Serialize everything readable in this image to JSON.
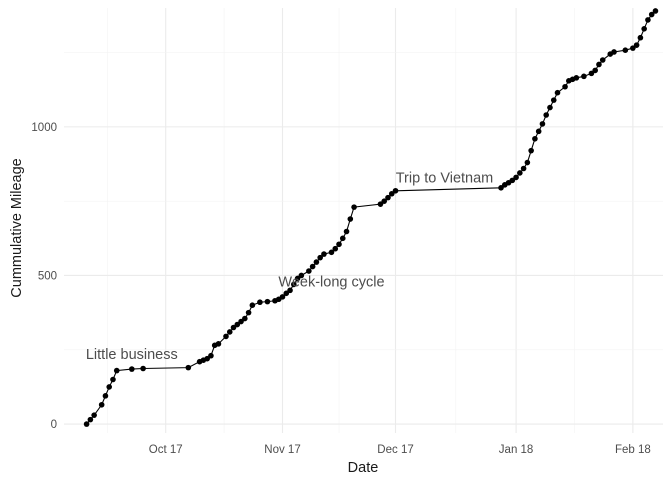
{
  "chart_data": {
    "type": "line",
    "xlabel": "Date",
    "ylabel": "Cummulative Mileage",
    "x_ticks": [
      {
        "date": "2017-10-17",
        "label": "Oct 17"
      },
      {
        "date": "2017-11-17",
        "label": "Nov 17"
      },
      {
        "date": "2017-12-17",
        "label": "Dec 17"
      },
      {
        "date": "2018-01-18",
        "label": "Jan 18"
      },
      {
        "date": "2018-02-18",
        "label": "Feb 18"
      }
    ],
    "x_range": [
      "2017-09-20",
      "2018-02-26"
    ],
    "y_ticks": [
      0,
      500,
      1000
    ],
    "y_range": [
      -30,
      1400
    ],
    "grid": true,
    "colors": {
      "line": "#000000",
      "point": "#000000",
      "grid": "#ebebeb"
    },
    "series": [
      {
        "points": [
          [
            "2017-09-26",
            0
          ],
          [
            "2017-09-27",
            15
          ],
          [
            "2017-09-28",
            30
          ],
          [
            "2017-09-30",
            65
          ],
          [
            "2017-10-01",
            95
          ],
          [
            "2017-10-02",
            125
          ],
          [
            "2017-10-03",
            150
          ],
          [
            "2017-10-04",
            180
          ],
          [
            "2017-10-08",
            185
          ],
          [
            "2017-10-11",
            187
          ],
          [
            "2017-10-23",
            190
          ],
          [
            "2017-10-26",
            210
          ],
          [
            "2017-10-27",
            215
          ],
          [
            "2017-10-28",
            220
          ],
          [
            "2017-10-29",
            230
          ],
          [
            "2017-10-30",
            265
          ],
          [
            "2017-10-31",
            270
          ],
          [
            "2017-11-02",
            295
          ],
          [
            "2017-11-03",
            310
          ],
          [
            "2017-11-04",
            325
          ],
          [
            "2017-11-05",
            335
          ],
          [
            "2017-11-06",
            345
          ],
          [
            "2017-11-07",
            355
          ],
          [
            "2017-11-08",
            375
          ],
          [
            "2017-11-09",
            400
          ],
          [
            "2017-11-11",
            410
          ],
          [
            "2017-11-13",
            412
          ],
          [
            "2017-11-15",
            415
          ],
          [
            "2017-11-16",
            420
          ],
          [
            "2017-11-17",
            428
          ],
          [
            "2017-11-18",
            440
          ],
          [
            "2017-11-19",
            450
          ],
          [
            "2017-11-20",
            470
          ],
          [
            "2017-11-21",
            490
          ],
          [
            "2017-11-22",
            500
          ],
          [
            "2017-11-24",
            515
          ],
          [
            "2017-11-25",
            530
          ],
          [
            "2017-11-26",
            545
          ],
          [
            "2017-11-27",
            560
          ],
          [
            "2017-11-28",
            572
          ],
          [
            "2017-11-30",
            578
          ],
          [
            "2017-12-01",
            590
          ],
          [
            "2017-12-02",
            605
          ],
          [
            "2017-12-03",
            625
          ],
          [
            "2017-12-04",
            648
          ],
          [
            "2017-12-05",
            690
          ],
          [
            "2017-12-06",
            730
          ],
          [
            "2017-12-13",
            740
          ],
          [
            "2017-12-14",
            750
          ],
          [
            "2017-12-15",
            762
          ],
          [
            "2017-12-16",
            775
          ],
          [
            "2017-12-17",
            785
          ],
          [
            "2018-01-14",
            795
          ],
          [
            "2018-01-15",
            805
          ],
          [
            "2018-01-16",
            812
          ],
          [
            "2018-01-17",
            820
          ],
          [
            "2018-01-18",
            830
          ],
          [
            "2018-01-19",
            845
          ],
          [
            "2018-01-20",
            860
          ],
          [
            "2018-01-21",
            880
          ],
          [
            "2018-01-22",
            920
          ],
          [
            "2018-01-23",
            960
          ],
          [
            "2018-01-24",
            985
          ],
          [
            "2018-01-25",
            1010
          ],
          [
            "2018-01-26",
            1040
          ],
          [
            "2018-01-27",
            1065
          ],
          [
            "2018-01-28",
            1090
          ],
          [
            "2018-01-29",
            1115
          ],
          [
            "2018-01-31",
            1135
          ],
          [
            "2018-02-01",
            1155
          ],
          [
            "2018-02-02",
            1160
          ],
          [
            "2018-02-03",
            1165
          ],
          [
            "2018-02-05",
            1170
          ],
          [
            "2018-02-07",
            1180
          ],
          [
            "2018-02-08",
            1190
          ],
          [
            "2018-02-09",
            1210
          ],
          [
            "2018-02-10",
            1225
          ],
          [
            "2018-02-12",
            1245
          ],
          [
            "2018-02-13",
            1252
          ],
          [
            "2018-02-16",
            1258
          ],
          [
            "2018-02-18",
            1265
          ],
          [
            "2018-02-19",
            1275
          ],
          [
            "2018-02-20",
            1300
          ],
          [
            "2018-02-21",
            1330
          ],
          [
            "2018-02-22",
            1360
          ],
          [
            "2018-02-23",
            1378
          ],
          [
            "2018-02-24",
            1390
          ]
        ]
      }
    ],
    "annotations": [
      {
        "text": "Little business",
        "date": "2017-10-08",
        "y": 235
      },
      {
        "text": "Week-long cycle",
        "date": "2017-11-30",
        "y": 480
      },
      {
        "text": "Trip to Vietnam",
        "date": "2017-12-30",
        "y": 830
      }
    ]
  }
}
